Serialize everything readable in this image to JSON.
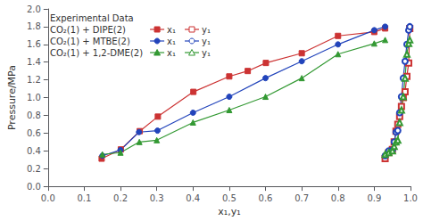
{
  "chart_data": {
    "type": "line",
    "xlabel": "x₁,y₁",
    "ylabel": "Pressure/MPa",
    "xlim": [
      0.0,
      1.0
    ],
    "ylim": [
      0.0,
      2.0
    ],
    "xticks": [
      {
        "value": 0.0,
        "label": "0.0"
      },
      0.1,
      0.2,
      0.3,
      0.4,
      0.5,
      0.6,
      0.7,
      0.8,
      0.9,
      {
        "value": 1.0,
        "label": "1.0"
      }
    ],
    "yticks": [
      {
        "value": 0.0,
        "label": "0.0"
      },
      0.2,
      0.4,
      0.6,
      0.8,
      {
        "value": 1.0,
        "label": "1.0"
      },
      1.2,
      1.4,
      1.6,
      1.8,
      {
        "value": 2.0,
        "label": "2.0"
      }
    ],
    "grid": false,
    "legend": "upper left",
    "legend_title": "Experimental Data",
    "series": [
      {
        "name": "x₁",
        "group": "CO₂(1) + DIPE(2)",
        "color": "#cc3333",
        "marker": "square",
        "x": [
          0.148,
          0.201,
          0.253,
          0.303,
          0.401,
          0.5,
          0.551,
          0.601,
          0.7,
          0.8,
          0.9,
          0.93
        ],
        "values": [
          0.312,
          0.416,
          0.622,
          0.786,
          1.065,
          1.239,
          1.3,
          1.391,
          1.5,
          1.696,
          1.74,
          1.78
        ]
      },
      {
        "name": "y₁",
        "group": "CO₂(1) + DIPE(2)",
        "color": "#cc3333",
        "marker": "square-open",
        "x": [
          0.93,
          0.94,
          0.95,
          0.955,
          0.96,
          0.965,
          0.97,
          0.975,
          0.98,
          0.985,
          0.99,
          0.995,
          0.998
        ],
        "values": [
          0.312,
          0.38,
          0.416,
          0.5,
          0.622,
          0.7,
          0.786,
          0.9,
          1.0,
          1.065,
          1.239,
          1.391,
          1.78
        ]
      },
      {
        "name": "x₁",
        "group": "CO₂(1) + MTBE(2)",
        "color": "#2244bb",
        "marker": "circle",
        "x": [
          0.15,
          0.2,
          0.251,
          0.302,
          0.4,
          0.5,
          0.6,
          0.7,
          0.8,
          0.9,
          0.93
        ],
        "values": [
          0.345,
          0.409,
          0.611,
          0.628,
          0.83,
          1.01,
          1.22,
          1.41,
          1.6,
          1.76,
          1.8
        ]
      },
      {
        "name": "y₁",
        "group": "CO₂(1) + MTBE(2)",
        "color": "#2244bb",
        "marker": "circle-open",
        "x": [
          0.93,
          0.94,
          0.95,
          0.955,
          0.96,
          0.965,
          0.97,
          0.975,
          0.98,
          0.985,
          0.99,
          0.995,
          0.998
        ],
        "values": [
          0.345,
          0.4,
          0.409,
          0.5,
          0.611,
          0.628,
          0.83,
          1.01,
          1.22,
          1.41,
          1.6,
          1.76,
          1.8
        ]
      },
      {
        "name": "x₁",
        "group": "CO₂(1) + 1,2-DME(2)",
        "color": "#339933",
        "marker": "triangle",
        "x": [
          0.15,
          0.2,
          0.252,
          0.3,
          0.4,
          0.5,
          0.6,
          0.7,
          0.8,
          0.9,
          0.93
        ],
        "values": [
          0.36,
          0.38,
          0.5,
          0.52,
          0.72,
          0.86,
          1.01,
          1.22,
          1.49,
          1.61,
          1.65
        ]
      },
      {
        "name": "y₁",
        "group": "CO₂(1) + 1,2-DME(2)",
        "color": "#339933",
        "marker": "triangle-open",
        "x": [
          0.93,
          0.94,
          0.95,
          0.955,
          0.96,
          0.965,
          0.97,
          0.975,
          0.98,
          0.985,
          0.99,
          0.995,
          0.998
        ],
        "values": [
          0.36,
          0.38,
          0.4,
          0.45,
          0.5,
          0.52,
          0.72,
          0.86,
          1.01,
          1.22,
          1.49,
          1.61,
          1.65
        ]
      }
    ]
  }
}
